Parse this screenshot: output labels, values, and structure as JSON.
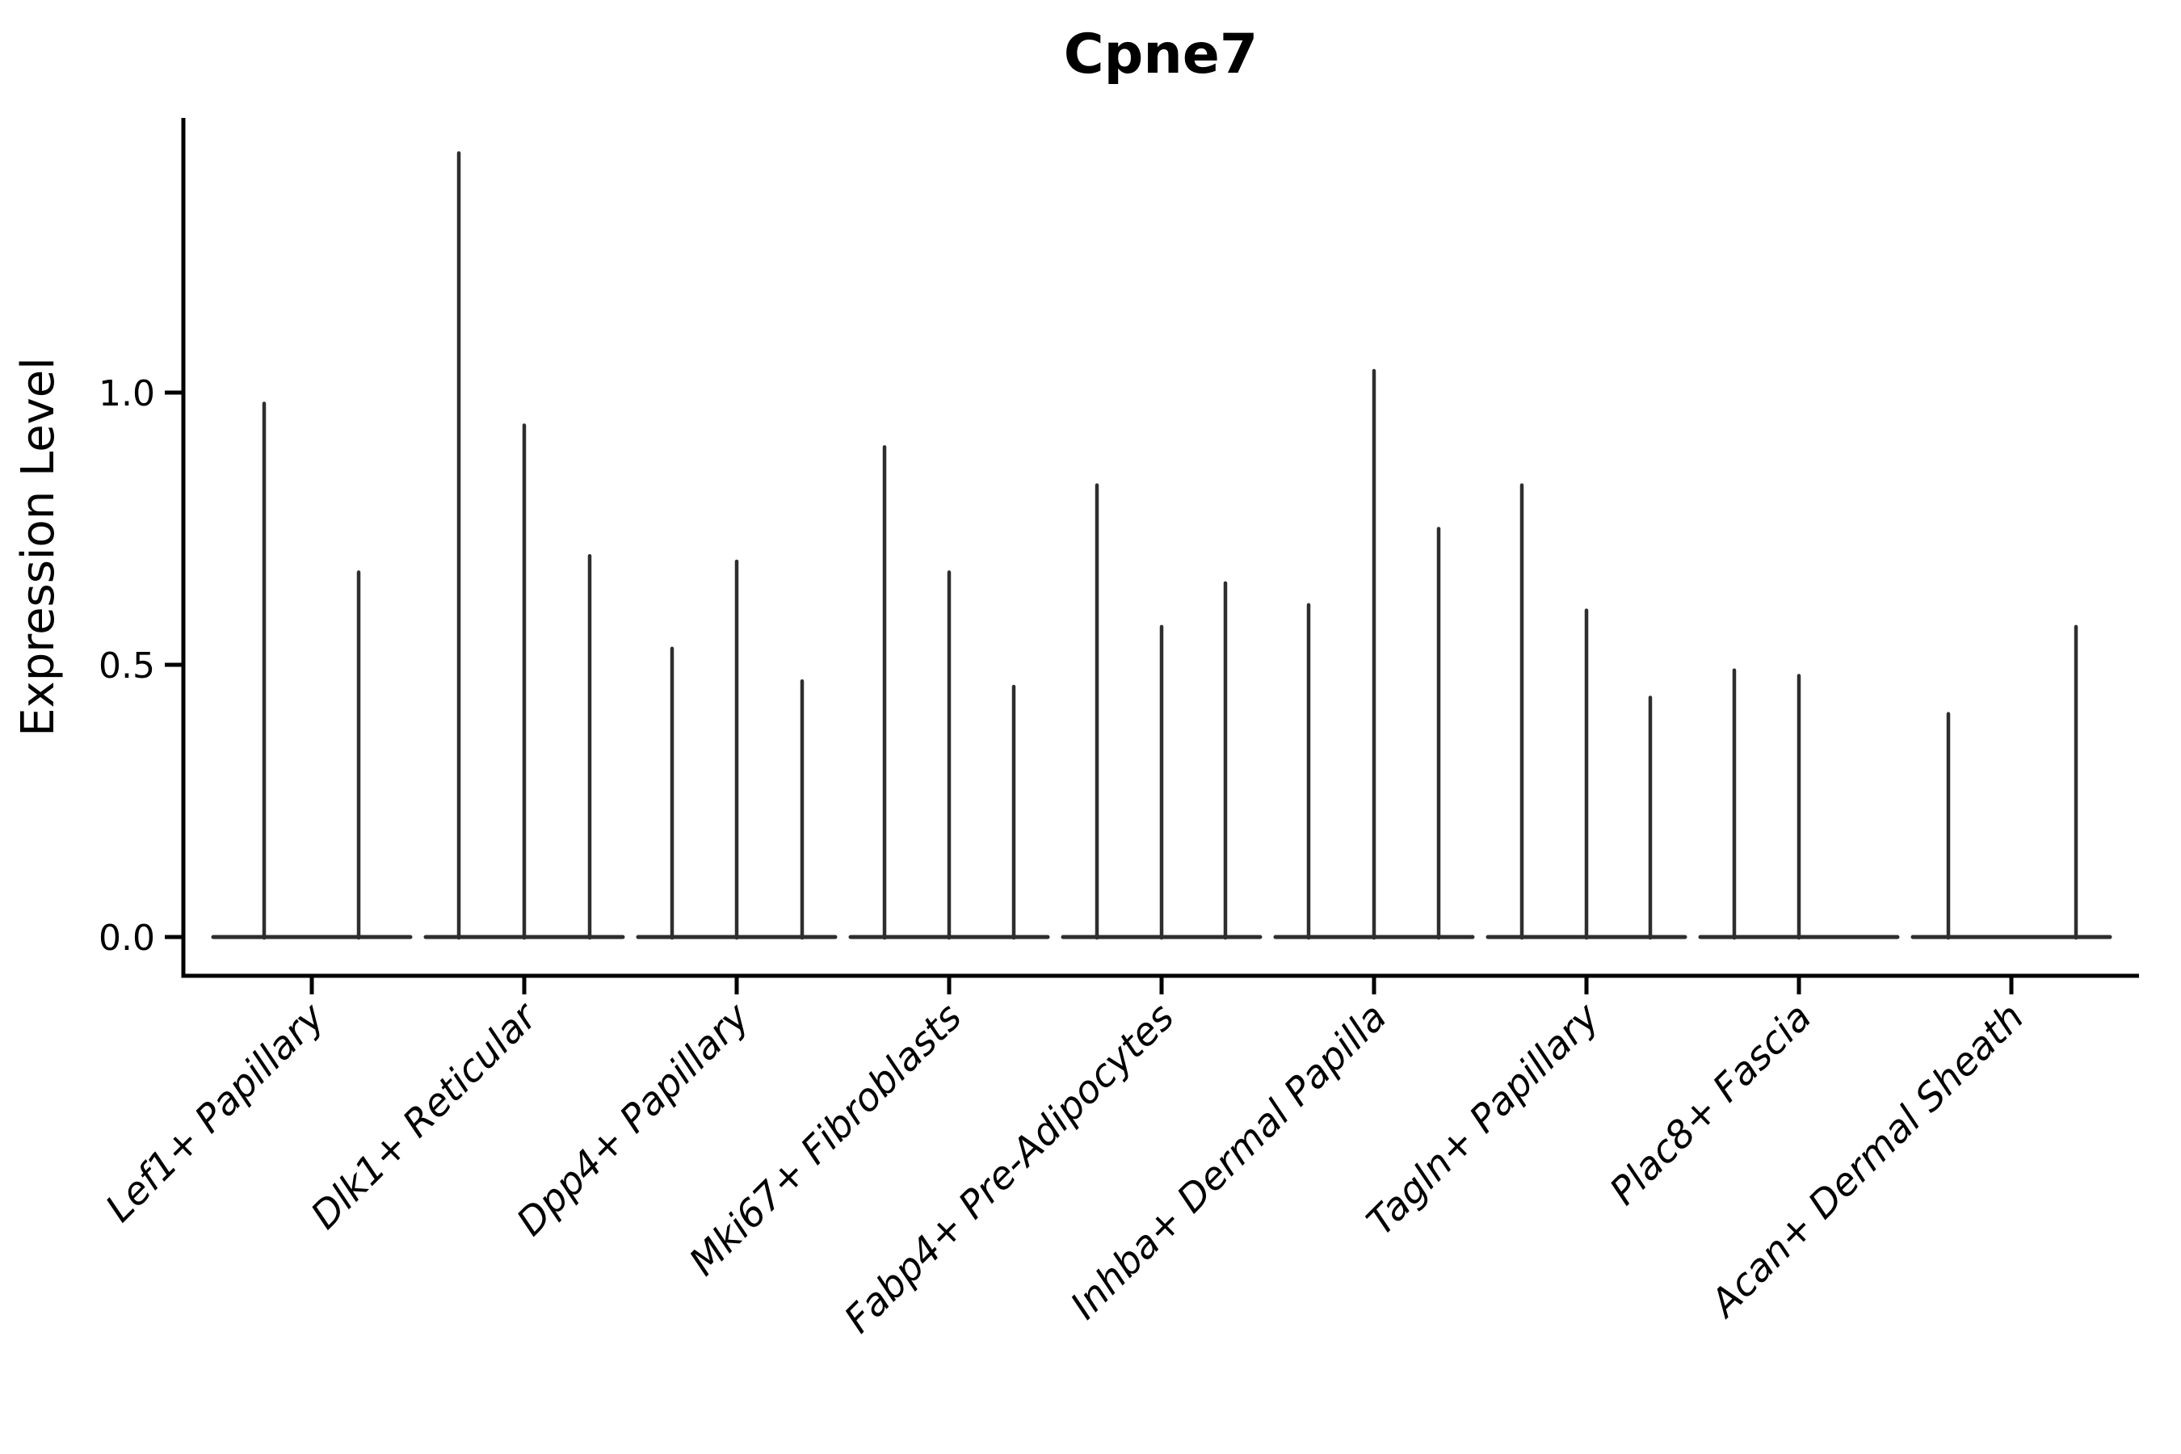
{
  "title": "Cpne7",
  "y_axis": {
    "label": "Expression Level",
    "tick_labels": [
      "0.0",
      "0.5",
      "1.0"
    ]
  },
  "colors": {
    "background": "#ffffff",
    "axis": "#000000",
    "text": "#000000",
    "violin": "#2e2e2e"
  },
  "chart_data": {
    "type": "violin",
    "title": "Cpne7",
    "xlabel": "",
    "ylabel": "Expression Level",
    "ylim": [
      -0.07,
      1.5
    ],
    "yticks": [
      0.0,
      0.5,
      1.0
    ],
    "ytick_labels": [
      "0.0",
      "0.5",
      "1.0"
    ],
    "grid": false,
    "legend": "none",
    "x_tick_rotation": 45,
    "categories": [
      "Lef1+ Papillary",
      "Dlk1+ Reticular",
      "Dpp4+ Papillary",
      "Mki67+ Fibroblasts",
      "Fabp4+ Pre-Adipocytes",
      "Inhba+ Dermal Papilla",
      "Tagln+ Papillary",
      "Plac8+ Fascia",
      "Acan+ Dermal Sheath"
    ],
    "groups": [
      {
        "label": "Lef1+ Papillary",
        "baseline_value": 0,
        "spikes": [
          {
            "offset": -59,
            "value": 0.98
          },
          {
            "offset": 58,
            "value": 0.67
          }
        ]
      },
      {
        "label": "Dlk1+ Reticular",
        "baseline_value": 0,
        "spikes": [
          {
            "offset": -81,
            "value": 1.44
          },
          {
            "offset": 0,
            "value": 0.94
          },
          {
            "offset": 81,
            "value": 0.7
          }
        ]
      },
      {
        "label": "Dpp4+ Papillary",
        "baseline_value": 0,
        "spikes": [
          {
            "offset": -80,
            "value": 0.53
          },
          {
            "offset": 0,
            "value": 0.69
          },
          {
            "offset": 81,
            "value": 0.47
          }
        ]
      },
      {
        "label": "Mki67+ Fibroblasts",
        "baseline_value": 0,
        "spikes": [
          {
            "offset": -80,
            "value": 0.9
          },
          {
            "offset": 0,
            "value": 0.67
          },
          {
            "offset": 80,
            "value": 0.46
          }
        ]
      },
      {
        "label": "Fabp4+ Pre-Adipocytes",
        "baseline_value": 0,
        "spikes": [
          {
            "offset": -80,
            "value": 0.83
          },
          {
            "offset": 0,
            "value": 0.57
          },
          {
            "offset": 79,
            "value": 0.65
          }
        ]
      },
      {
        "label": "Inhba+ Dermal Papilla",
        "baseline_value": 0,
        "spikes": [
          {
            "offset": -81,
            "value": 0.61
          },
          {
            "offset": 0,
            "value": 1.04
          },
          {
            "offset": 80,
            "value": 0.75
          }
        ]
      },
      {
        "label": "Tagln+ Papillary",
        "baseline_value": 0,
        "spikes": [
          {
            "offset": -80,
            "value": 0.83
          },
          {
            "offset": 0,
            "value": 0.6
          },
          {
            "offset": 79,
            "value": 0.44
          }
        ]
      },
      {
        "label": "Plac8+ Fascia",
        "baseline_value": 0,
        "spikes": [
          {
            "offset": -80,
            "value": 0.49
          },
          {
            "offset": 0,
            "value": 0.48
          }
        ]
      },
      {
        "label": "Acan+ Dermal Sheath",
        "baseline_value": 0,
        "spikes": [
          {
            "offset": -78,
            "value": 0.41
          },
          {
            "offset": 80,
            "value": 0.57
          }
        ]
      }
    ]
  }
}
